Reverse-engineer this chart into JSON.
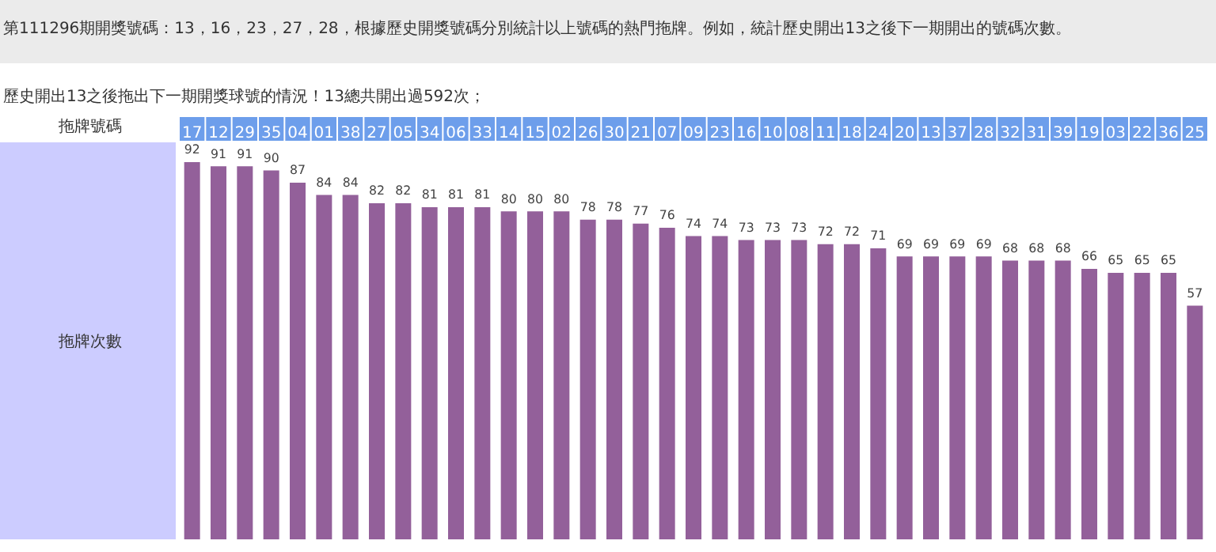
{
  "chart_data": {
    "type": "bar",
    "title": "第111296期開獎號碼：13，16，23，27，28，根據歷史開獎號碼分別統計以上號碼的熱門拖牌。例如，統計歷史開出13之後下一期開出的號碼次數。",
    "subtitle": "歷史開出13之後拖出下一期開獎球號的情況！13總共開出過592次；",
    "xlabel": "拖牌號碼",
    "ylabel": "拖牌次數",
    "categories": [
      "17",
      "12",
      "29",
      "35",
      "04",
      "01",
      "38",
      "27",
      "05",
      "34",
      "06",
      "33",
      "14",
      "15",
      "02",
      "26",
      "30",
      "21",
      "07",
      "09",
      "23",
      "16",
      "10",
      "08",
      "11",
      "18",
      "24",
      "20",
      "13",
      "37",
      "28",
      "32",
      "31",
      "39",
      "19",
      "03",
      "22",
      "36",
      "25"
    ],
    "values": [
      92,
      91,
      91,
      90,
      87,
      84,
      84,
      82,
      82,
      81,
      81,
      81,
      80,
      80,
      80,
      78,
      78,
      77,
      76,
      74,
      74,
      73,
      73,
      73,
      72,
      72,
      71,
      69,
      69,
      69,
      69,
      68,
      68,
      68,
      66,
      65,
      65,
      65,
      57
    ],
    "color": "#93609a",
    "data_labels": true
  }
}
